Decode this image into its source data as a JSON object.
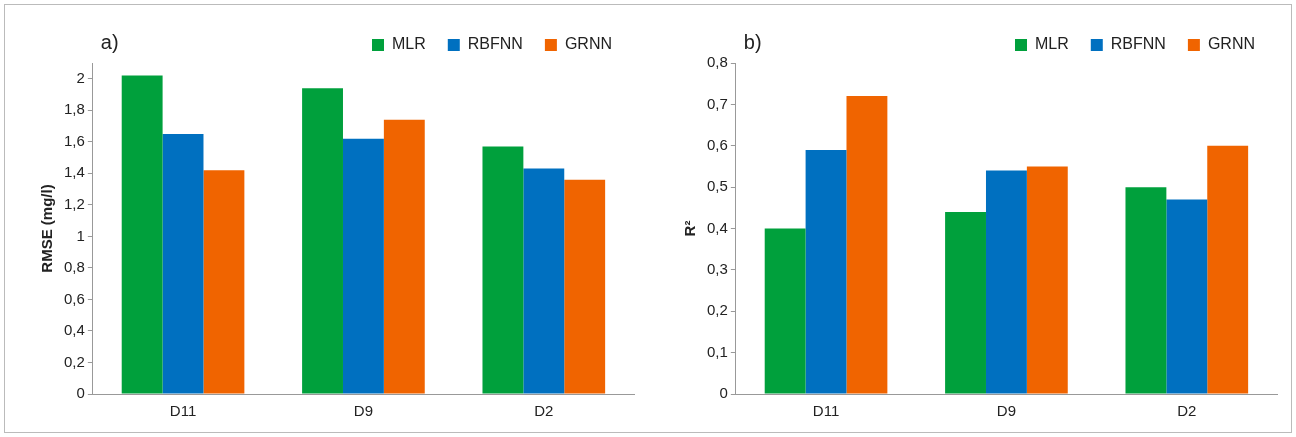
{
  "chart_data": [
    {
      "type": "bar",
      "title": "a)",
      "ylabel": "RMSE (mg/l)",
      "categories": [
        "D11",
        "D9",
        "D2"
      ],
      "series": [
        {
          "name": "MLR",
          "color": "#00a03c",
          "values": [
            2.02,
            1.94,
            1.57
          ]
        },
        {
          "name": "RBFNN",
          "color": "#0070c0",
          "values": [
            1.65,
            1.62,
            1.43
          ]
        },
        {
          "name": "GRNN",
          "color": "#f06400",
          "values": [
            1.42,
            1.74,
            1.36
          ]
        }
      ],
      "ylim": [
        0,
        2.1
      ],
      "yticks": [
        0,
        {
          "value": 0.2,
          "label": "0,2"
        },
        {
          "value": 0.4,
          "label": "0,4"
        },
        {
          "value": 0.6,
          "label": "0,6"
        },
        {
          "value": 0.8,
          "label": "0,8"
        },
        1,
        {
          "value": 1.2,
          "label": "1,2"
        },
        {
          "value": 1.4,
          "label": "1,4"
        },
        {
          "value": 1.6,
          "label": "1,6"
        },
        {
          "value": 1.8,
          "label": "1,8"
        },
        2
      ],
      "grid": false,
      "legend": "top right"
    },
    {
      "type": "bar",
      "title": "b)",
      "ylabel": "R²",
      "categories": [
        "D11",
        "D9",
        "D2"
      ],
      "series": [
        {
          "name": "MLR",
          "color": "#00a03c",
          "values": [
            0.4,
            0.44,
            0.5
          ]
        },
        {
          "name": "RBFNN",
          "color": "#0070c0",
          "values": [
            0.59,
            0.54,
            0.47
          ]
        },
        {
          "name": "GRNN",
          "color": "#f06400",
          "values": [
            0.72,
            0.55,
            0.6
          ]
        }
      ],
      "ylim": [
        0,
        0.8
      ],
      "yticks": [
        0,
        {
          "value": 0.1,
          "label": "0,1"
        },
        {
          "value": 0.2,
          "label": "0,2"
        },
        {
          "value": 0.3,
          "label": "0,3"
        },
        {
          "value": 0.4,
          "label": "0,4"
        },
        {
          "value": 0.5,
          "label": "0,5"
        },
        {
          "value": 0.6,
          "label": "0,6"
        },
        {
          "value": 0.7,
          "label": "0,7"
        },
        {
          "value": 0.8,
          "label": "0,8"
        }
      ],
      "grid": false,
      "legend": "top right"
    }
  ]
}
